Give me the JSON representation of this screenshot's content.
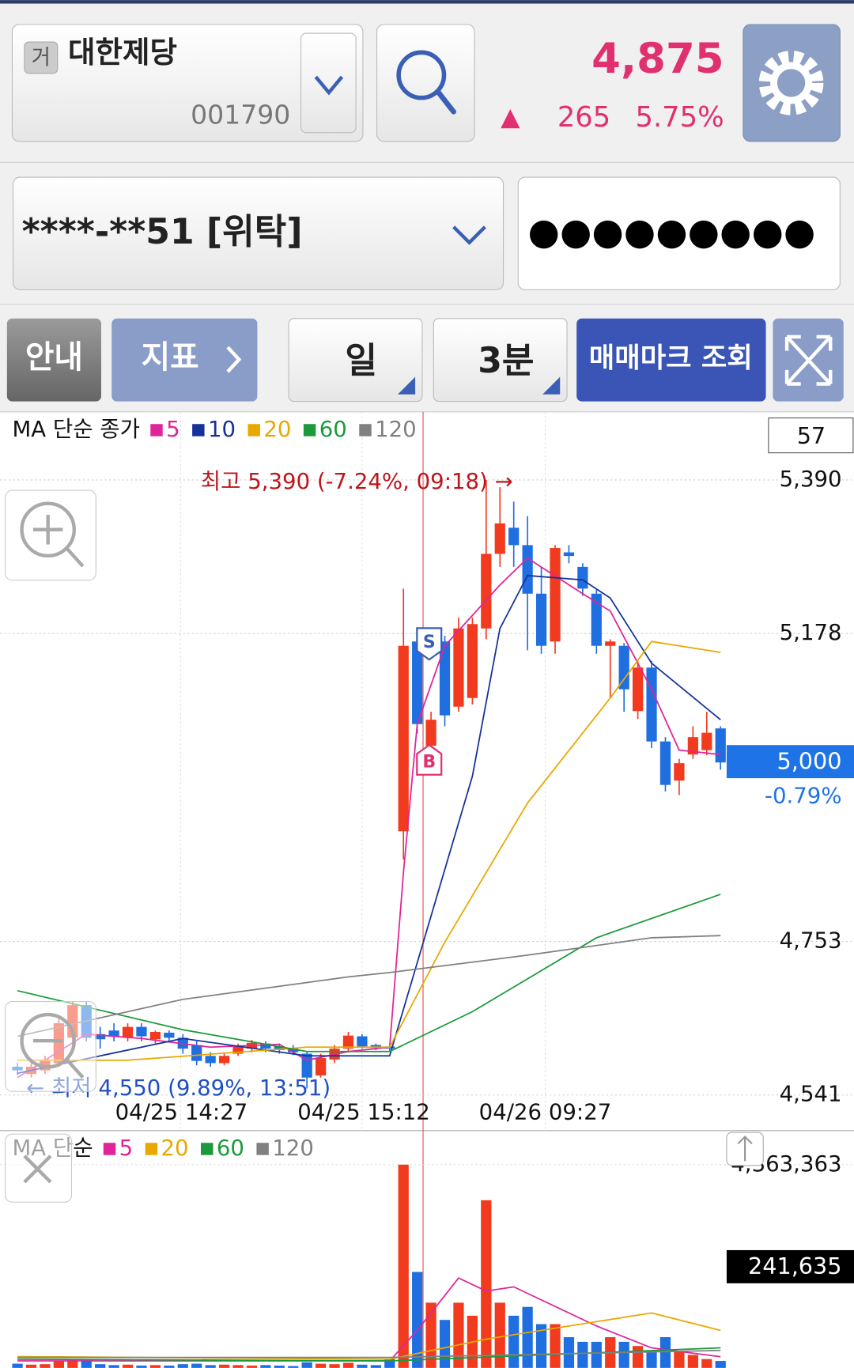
{
  "header": {
    "market_badge": "거",
    "name": "대한제당",
    "code": "001790",
    "price": "4,875",
    "change": "265",
    "rate": "5.75%"
  },
  "account": {
    "number": "****-**51 [위탁]",
    "password": "●●●●●●●●●"
  },
  "toolbar": [
    "안내",
    "지표",
    "일",
    "3분",
    "매매마크 조회"
  ],
  "chart_data": [
    {
      "type": "candlestick",
      "legend_title": "MA 단순 종가",
      "count": "57",
      "high_note": "최고 5,390 (-7.24%, 09:18) →",
      "low_note": "← 최저 4,550 (9.89%, 13:51)",
      "last_label": "5,000",
      "last_change": "-0.79%",
      "trade_marks": [
        "S",
        "B"
      ],
      "x_labels": [
        "04/25 14:27",
        "04/25 15:12",
        "04/26 09:27"
      ],
      "ylim": [
        4493,
        5484
      ],
      "yticks": [
        {
          "value": 4541,
          "label": "4,541"
        },
        {
          "value": 4753,
          "label": "4,753"
        },
        {
          "value": 5178,
          "label": "5,178"
        },
        {
          "value": 5390,
          "label": "5,390"
        }
      ],
      "up_color": "#f23a1e",
      "down_color": "#1f6fe0",
      "open": [
        4580,
        4570,
        4575,
        4585,
        4620,
        4665,
        4625,
        4630,
        4620,
        4635,
        4618,
        4627,
        4620,
        4610,
        4595,
        4585,
        4598,
        4605,
        4612,
        4608,
        4605,
        4598,
        4568,
        4590,
        4605,
        4622,
        4610,
        4608,
        4905,
        5167,
        5023,
        5167,
        5077,
        5089,
        5185,
        5288,
        5324,
        5300,
        5233,
        5167,
        5290,
        5270,
        5233,
        5161,
        5161,
        5071,
        5131,
        5029,
        4975,
        5011,
        5017,
        5047
      ],
      "high": [
        4585,
        4585,
        4595,
        4650,
        4670,
        4670,
        4635,
        4640,
        4640,
        4640,
        4630,
        4630,
        4625,
        4615,
        4600,
        4600,
        4612,
        4617,
        4615,
        4612,
        4610,
        4600,
        4598,
        4610,
        4628,
        4625,
        4612,
        4610,
        5240,
        5180,
        5070,
        5175,
        5200,
        5200,
        5390,
        5380,
        5360,
        5340,
        5270,
        5300,
        5300,
        5275,
        5240,
        5170,
        5165,
        5140,
        5140,
        5035,
        5005,
        5050,
        5070,
        5050
      ],
      "low": [
        4568,
        4565,
        4570,
        4580,
        4610,
        4615,
        4605,
        4615,
        4615,
        4615,
        4612,
        4615,
        4598,
        4582,
        4580,
        4582,
        4595,
        4600,
        4600,
        4598,
        4596,
        4550,
        4565,
        4585,
        4600,
        4605,
        4603,
        4602,
        4866,
        5040,
        4990,
        5050,
        5070,
        5080,
        5170,
        5270,
        5270,
        5155,
        5150,
        5150,
        5275,
        5230,
        5150,
        5090,
        5070,
        5060,
        5020,
        4960,
        4955,
        5005,
        5010,
        4990
      ],
      "close": [
        4575,
        4580,
        4590,
        4640,
        4665,
        4620,
        4618,
        4622,
        4635,
        4622,
        4628,
        4620,
        4605,
        4588,
        4585,
        4595,
        4608,
        4613,
        4605,
        4603,
        4600,
        4565,
        4592,
        4605,
        4623,
        4608,
        4606,
        4605,
        5161,
        5053,
        5059,
        5065,
        5185,
        5191,
        5288,
        5330,
        5300,
        5233,
        5161,
        5296,
        5285,
        5240,
        5161,
        5167,
        5101,
        5131,
        5029,
        4969,
        4999,
        5035,
        5041,
        5000
      ],
      "ma": [
        {
          "name": "5",
          "color": "#e0249a",
          "x": [
            0,
            5,
            9,
            14,
            19,
            21,
            24,
            27,
            28,
            29,
            31,
            35,
            37,
            41,
            43,
            46,
            48,
            51
          ],
          "values": [
            4565,
            4625,
            4619,
            4607,
            4611,
            4589,
            4601,
            4607,
            4848,
            5053,
            5161,
            5245,
            5282,
            5233,
            5209,
            5101,
            5017,
            5011
          ]
        },
        {
          "name": "10",
          "color": "#15329a",
          "x": [
            0,
            12,
            21,
            27,
            30,
            33,
            35,
            37,
            41,
            43,
            46,
            51
          ],
          "values": [
            4571,
            4619,
            4595,
            4595,
            4788,
            4981,
            5185,
            5258,
            5252,
            5227,
            5137,
            5059
          ]
        },
        {
          "name": "20",
          "color": "#e8a800",
          "x": [
            0,
            8,
            21,
            27,
            31,
            37,
            43,
            46,
            51
          ],
          "values": [
            4589,
            4589,
            4607,
            4607,
            4752,
            4944,
            5089,
            5167,
            5152
          ]
        },
        {
          "name": "60",
          "color": "#1a9a3a",
          "x": [
            0,
            12,
            21,
            27,
            33,
            42,
            51
          ],
          "values": [
            4685,
            4631,
            4601,
            4601,
            4656,
            4758,
            4818
          ]
        },
        {
          "name": "120",
          "color": "#808080",
          "x": [
            0,
            12,
            24,
            27,
            37,
            46,
            51
          ],
          "values": [
            4622,
            4673,
            4704,
            4710,
            4734,
            4758,
            4761
          ]
        }
      ]
    },
    {
      "type": "volume",
      "legend_title": "MA 단순",
      "last_label": "241,635",
      "ylim": [
        0,
        4363363
      ],
      "yticks": [
        {
          "value": 4363363,
          "label": "4,363,363"
        }
      ],
      "values": [
        90000,
        70000,
        80000,
        150000,
        190000,
        170000,
        80000,
        60000,
        70000,
        50000,
        60000,
        50000,
        80000,
        90000,
        60000,
        70000,
        60000,
        50000,
        60000,
        50000,
        40000,
        120000,
        90000,
        80000,
        110000,
        70000,
        60000,
        190000,
        4363363,
        2060000,
        1400000,
        1030000,
        1400000,
        1120000,
        3600000,
        1400000,
        1120000,
        1310000,
        940000,
        940000,
        660000,
        560000,
        560000,
        660000,
        560000,
        470000,
        370000,
        660000,
        370000,
        280000,
        190000,
        150000
      ],
      "ma": [
        {
          "name": "5",
          "color": "#e0249a",
          "x": [
            0,
            27,
            29,
            32,
            34,
            36,
            38,
            42,
            46,
            51
          ],
          "values": [
            150000,
            150000,
            805000,
            1930000,
            1650000,
            1740000,
            1460000,
            900000,
            430000,
            240000
          ]
        },
        {
          "name": "20",
          "color": "#e8a800",
          "x": [
            0,
            27,
            34,
            42,
            46,
            51
          ],
          "values": [
            243000,
            187000,
            618000,
            993000,
            1180000,
            805000
          ]
        },
        {
          "name": "60",
          "color": "#1a9a3a",
          "x": [
            0,
            27,
            51
          ],
          "values": [
            187000,
            150000,
            431000
          ]
        },
        {
          "name": "120",
          "color": "#808080",
          "x": [
            0,
            27,
            51
          ],
          "values": [
            225000,
            225000,
            375000
          ]
        }
      ]
    }
  ]
}
